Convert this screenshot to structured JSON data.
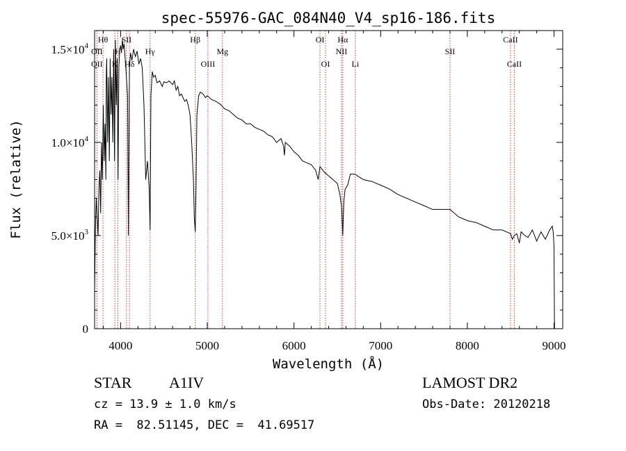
{
  "chart_data": {
    "type": "line",
    "title": "spec-55976-GAC_084N40_V4_sp16-186.fits",
    "xlabel": "Wavelength (Å)",
    "ylabel": "Flux (relative)",
    "xlim": [
      3700,
      9100
    ],
    "ylim": [
      0,
      16000
    ],
    "x_ticks": [
      4000,
      5000,
      6000,
      7000,
      8000,
      9000
    ],
    "x_tick_labels": [
      "4000",
      "5000",
      "6000",
      "7000",
      "8000",
      "9000"
    ],
    "y_ticks": [
      0,
      5000,
      10000,
      15000
    ],
    "y_tick_labels": [
      {
        "mant": "0",
        "exp": ""
      },
      {
        "mant": "5.0×10",
        "exp": "3"
      },
      {
        "mant": "1.0×10",
        "exp": "4"
      },
      {
        "mant": "1.5×10",
        "exp": "4"
      }
    ],
    "series": [
      {
        "x": [
          3700,
          3710,
          3720,
          3730,
          3740,
          3750,
          3760,
          3770,
          3780,
          3790,
          3800,
          3810,
          3820,
          3830,
          3835,
          3840,
          3850,
          3860,
          3870,
          3880,
          3890,
          3900,
          3910,
          3920,
          3930,
          3940,
          3950,
          3960,
          3970,
          3980,
          3990,
          4000,
          4010,
          4020,
          4030,
          4040,
          4060,
          4080,
          4090,
          4102,
          4115,
          4130,
          4150,
          4170,
          4190,
          4210,
          4230,
          4250,
          4270,
          4290,
          4310,
          4330,
          4340,
          4350,
          4365,
          4380,
          4400,
          4420,
          4450,
          4480,
          4500,
          4530,
          4560,
          4600,
          4620,
          4640,
          4660,
          4680,
          4700,
          4720,
          4740,
          4760,
          4780,
          4800,
          4820,
          4840,
          4850,
          4861,
          4870,
          4880,
          4900,
          4920,
          4950,
          4980,
          5000,
          5050,
          5100,
          5150,
          5200,
          5250,
          5300,
          5350,
          5400,
          5450,
          5500,
          5550,
          5600,
          5650,
          5700,
          5750,
          5800,
          5850,
          5880,
          5890,
          5900,
          5950,
          6000,
          6050,
          6100,
          6150,
          6200,
          6250,
          6280,
          6300,
          6350,
          6400,
          6450,
          6500,
          6530,
          6550,
          6563,
          6575,
          6590,
          6620,
          6650,
          6700,
          6800,
          6900,
          7000,
          7100,
          7200,
          7300,
          7400,
          7500,
          7600,
          7700,
          7800,
          7850,
          7900,
          8000,
          8100,
          8200,
          8300,
          8400,
          8450,
          8498,
          8520,
          8542,
          8570,
          8600,
          8620,
          8662,
          8700,
          8750,
          8800,
          8850,
          8900,
          8950,
          8980,
          8990,
          9000,
          9005
        ],
        "y": [
          2000,
          5500,
          7000,
          6000,
          5000,
          7500,
          8500,
          6200,
          10000,
          8000,
          12000,
          9000,
          11000,
          8000,
          13500,
          14500,
          10000,
          13500,
          9000,
          14500,
          11500,
          13500,
          10000,
          15000,
          9000,
          15500,
          12000,
          14500,
          8000,
          14000,
          15000,
          15200,
          14800,
          15500,
          15000,
          15300,
          14000,
          12500,
          5000,
          14000,
          14800,
          14400,
          15000,
          14600,
          14900,
          14200,
          14500,
          14000,
          12000,
          8000,
          9000,
          7500,
          5300,
          12500,
          13800,
          13500,
          13600,
          13200,
          13300,
          13000,
          13250,
          13200,
          13300,
          13100,
          13300,
          12800,
          13000,
          12500,
          12600,
          12400,
          12200,
          12300,
          12000,
          11500,
          10000,
          8000,
          6000,
          5200,
          7500,
          11500,
          12500,
          12700,
          12600,
          12400,
          12500,
          12300,
          12200,
          12050,
          11800,
          11700,
          11500,
          11300,
          11200,
          11000,
          11000,
          10800,
          10700,
          10600,
          10400,
          10300,
          10000,
          10200,
          9800,
          9300,
          10000,
          9800,
          9500,
          9300,
          9000,
          8900,
          8800,
          8500,
          8000,
          8700,
          8400,
          8200,
          8000,
          7800,
          7200,
          6500,
          5000,
          6800,
          7500,
          7700,
          8300,
          8300,
          8000,
          7900,
          7700,
          7500,
          7200,
          7000,
          6800,
          6600,
          6400,
          6400,
          6400,
          6200,
          6000,
          5800,
          5700,
          5500,
          5300,
          5300,
          5200,
          5100,
          4800,
          5000,
          5100,
          4600,
          5200,
          5000,
          4900,
          5300,
          4700,
          5200,
          4800,
          5300,
          5500,
          5200,
          4400,
          0
        ]
      }
    ],
    "lines": [
      {
        "label": "Hθ",
        "x": 3797,
        "row": 1
      },
      {
        "label": "OII",
        "x": 3727,
        "row": 2
      },
      {
        "label": "OII",
        "x": 3727,
        "row": 3
      },
      {
        "label": "SII",
        "x": 4068,
        "row": 1
      },
      {
        "label": "K",
        "x": 3934,
        "row": 3
      },
      {
        "label": "H",
        "x": 3968,
        "row": 2
      },
      {
        "label": "Hδ",
        "x": 4102,
        "row": 3
      },
      {
        "label": "Hγ",
        "x": 4340,
        "row": 2
      },
      {
        "label": "Hβ",
        "x": 4861,
        "row": 1
      },
      {
        "label": "Mg",
        "x": 5175,
        "row": 2
      },
      {
        "label": "OIII",
        "x": 5007,
        "row": 3
      },
      {
        "label": "OI",
        "x": 6300,
        "row": 1
      },
      {
        "label": "OI",
        "x": 6364,
        "row": 3
      },
      {
        "label": "Hα",
        "x": 6563,
        "row": 1
      },
      {
        "label": "NII",
        "x": 6548,
        "row": 2
      },
      {
        "label": "Li",
        "x": 6708,
        "row": 3
      },
      {
        "label": "SII",
        "x": 7800,
        "row": 2
      },
      {
        "label": "CaII",
        "x": 8498,
        "row": 1
      },
      {
        "label": "CaII",
        "x": 8542,
        "row": 3
      }
    ]
  },
  "info": {
    "class": "STAR",
    "subclass": "A1IV",
    "cz": "cz = 13.9 ± 1.0 km/s",
    "coords": "RA =  82.51145, DEC =  41.69517",
    "survey": "LAMOST DR2",
    "obs_date": "Obs-Date: 20120218"
  }
}
